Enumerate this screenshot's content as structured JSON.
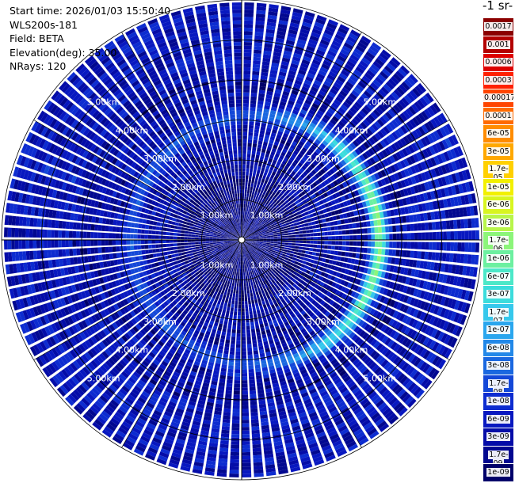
{
  "info": {
    "start_time": "Start time: 2026/01/03 15:50:40",
    "instrument": "WLS200s-181",
    "field": "Field: BETA",
    "elevation": "Elevation(deg): 35.00",
    "nrays": "NRays: 120"
  },
  "colorbar": {
    "title": "-1 sr-",
    "labels": [
      "0.0017",
      "0.001",
      "0.0006",
      "0.0003",
      "0.00017",
      "0.0001",
      "6e-05",
      "3e-05",
      "1.7e-05",
      "1e-05",
      "6e-06",
      "3e-06",
      "1.7e-06",
      "1e-06",
      "6e-07",
      "3e-07",
      "1.7e-07",
      "1e-07",
      "6e-08",
      "3e-08",
      "1.7e-08",
      "1e-08",
      "6e-09",
      "3e-09",
      "1.7e-09",
      "1e-09"
    ],
    "colors": [
      "#8b0000",
      "#b30000",
      "#dd0000",
      "#ff2000",
      "#ff4500",
      "#ff6a00",
      "#ff8c00",
      "#ffa800",
      "#ffd000",
      "#f2f000",
      "#d8f520",
      "#b8f54a",
      "#8cf57a",
      "#6cf0a0",
      "#4ce8c8",
      "#3cdcdc",
      "#36c8ec",
      "#2aa6ee",
      "#2288e8",
      "#1a68e0",
      "#1448d8",
      "#0d2cd0",
      "#0818c0",
      "#040ca8",
      "#020890",
      "#00006a"
    ]
  },
  "chart_data": {
    "type": "heatmap",
    "title": "",
    "projection": "polar (PPI scan)",
    "nrays": 120,
    "elevation_deg": 35.0,
    "ring_labels_km": [
      "1.00km",
      "2.00km",
      "3.00km",
      "4.00km",
      "5.00km"
    ],
    "ring_ranges_km": [
      1,
      2,
      3,
      4,
      5
    ],
    "max_range_km": 6.0,
    "colorscale": "log",
    "value_range": [
      1e-09,
      0.0017
    ],
    "features": [
      {
        "range_km": 3.1,
        "description": "enhanced backscatter ring",
        "peak_value": 1.7e-06,
        "sector": "east"
      }
    ]
  }
}
